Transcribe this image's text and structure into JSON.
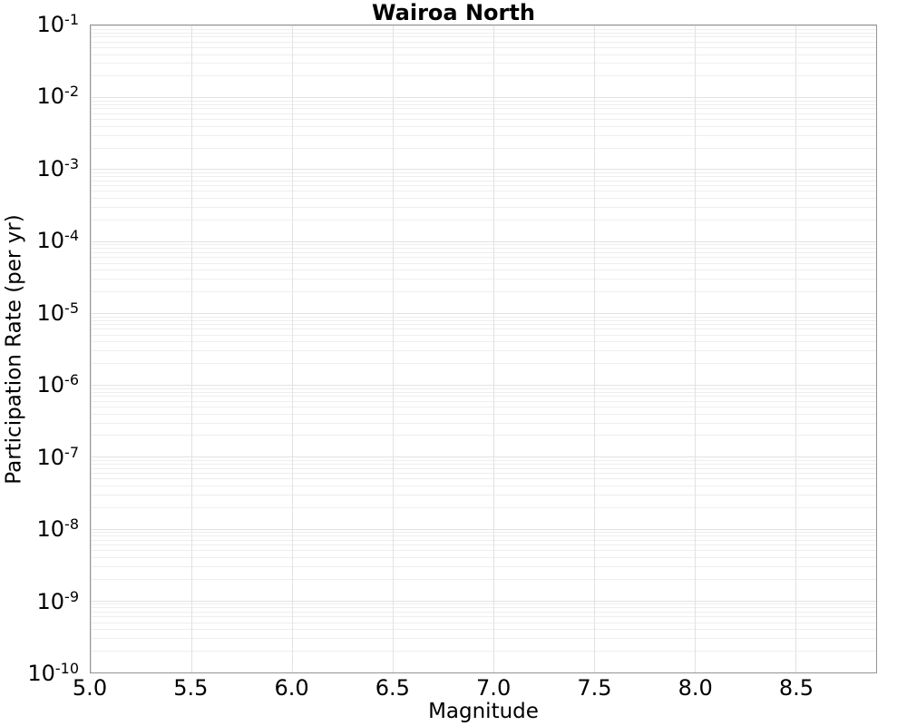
{
  "chart_data": {
    "type": "line",
    "title": "Wairoa North",
    "xlabel": "Magnitude",
    "ylabel": "Participation Rate (per yr)",
    "xscale": "linear",
    "yscale": "log",
    "xlim": [
      5.0,
      8.9
    ],
    "ylim": [
      1e-10,
      0.1
    ],
    "x_ticks": [
      5.0,
      5.5,
      6.0,
      6.5,
      7.0,
      7.5,
      8.0,
      8.5
    ],
    "x_tick_labels": [
      "5.0",
      "5.5",
      "6.0",
      "6.5",
      "7.0",
      "7.5",
      "8.0",
      "8.5"
    ],
    "y_tick_exponents": [
      -1,
      -2,
      -3,
      -4,
      -5,
      -6,
      -7,
      -8,
      -9,
      -10
    ],
    "y_tick_labels": [
      "10^-1",
      "10^-2",
      "10^-3",
      "10^-4",
      "10^-5",
      "10^-6",
      "10^-7",
      "10^-8",
      "10^-9",
      "10^-10"
    ],
    "grid": {
      "major": true,
      "minor_y": true,
      "minor_x": false
    },
    "legend": "none",
    "series": []
  },
  "colors": {
    "background": "#ffffff",
    "text": "#000000",
    "spine": "#949494",
    "grid_major": "#e2e2e2",
    "grid_minor": "#eeeeee"
  }
}
